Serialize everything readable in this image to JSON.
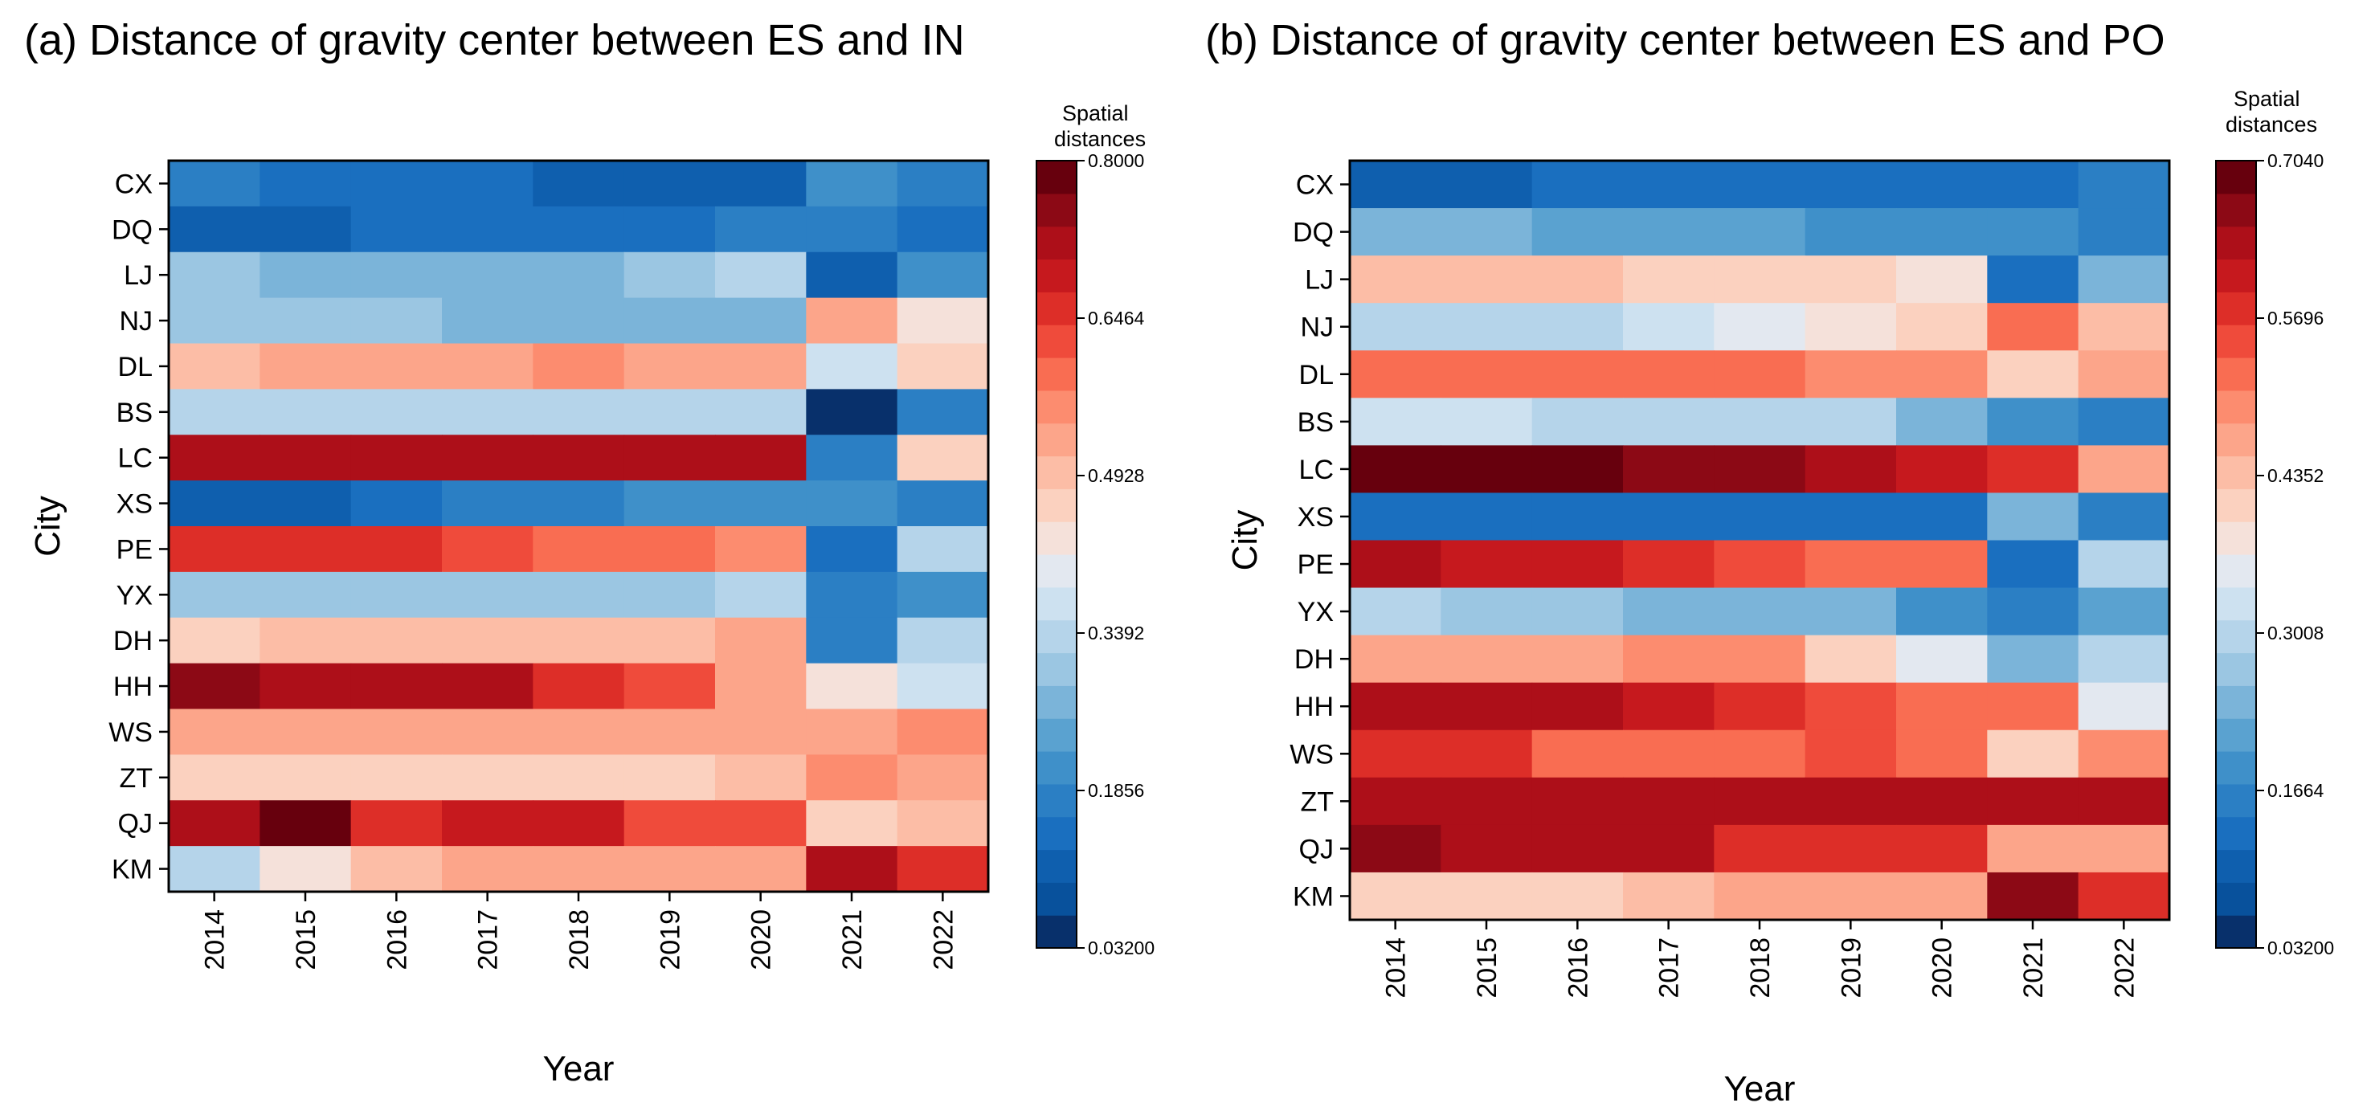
{
  "chart_data": [
    {
      "type": "heatmap",
      "title": "(a)  Distance of  gravity center between ES and IN",
      "xlabel": "Year",
      "ylabel": "City",
      "x": [
        "2014",
        "2015",
        "2016",
        "2017",
        "2018",
        "2019",
        "2020",
        "2021",
        "2022"
      ],
      "y": [
        "CX",
        "DQ",
        "LJ",
        "NJ",
        "DL",
        "BS",
        "LC",
        "XS",
        "PE",
        "YX",
        "DH",
        "HH",
        "WS",
        "ZT",
        "QJ",
        "KM"
      ],
      "values": [
        [
          0.18,
          0.15,
          0.15,
          0.15,
          0.12,
          0.12,
          0.12,
          0.2,
          0.18
        ],
        [
          0.12,
          0.12,
          0.15,
          0.15,
          0.15,
          0.15,
          0.18,
          0.18,
          0.15
        ],
        [
          0.31,
          0.27,
          0.27,
          0.27,
          0.27,
          0.29,
          0.33,
          0.12,
          0.22
        ],
        [
          0.31,
          0.31,
          0.31,
          0.27,
          0.27,
          0.27,
          0.27,
          0.52,
          0.42
        ],
        [
          0.5,
          0.52,
          0.52,
          0.52,
          0.56,
          0.52,
          0.52,
          0.38,
          0.46
        ],
        [
          0.33,
          0.33,
          0.35,
          0.35,
          0.35,
          0.35,
          0.33,
          0.04,
          0.18
        ],
        [
          0.73,
          0.73,
          0.73,
          0.73,
          0.71,
          0.71,
          0.71,
          0.18,
          0.46
        ],
        [
          0.1,
          0.1,
          0.15,
          0.18,
          0.18,
          0.2,
          0.22,
          0.22,
          0.18
        ],
        [
          0.67,
          0.64,
          0.64,
          0.62,
          0.6,
          0.6,
          0.56,
          0.15,
          0.33
        ],
        [
          0.31,
          0.31,
          0.31,
          0.31,
          0.31,
          0.31,
          0.33,
          0.18,
          0.22
        ],
        [
          0.46,
          0.5,
          0.5,
          0.5,
          0.5,
          0.5,
          0.52,
          0.18,
          0.35
        ],
        [
          0.76,
          0.73,
          0.71,
          0.71,
          0.67,
          0.62,
          0.52,
          0.44,
          0.37
        ],
        [
          0.54,
          0.54,
          0.54,
          0.54,
          0.54,
          0.54,
          0.54,
          0.52,
          0.56
        ],
        [
          0.46,
          0.46,
          0.46,
          0.48,
          0.46,
          0.48,
          0.5,
          0.56,
          0.52
        ],
        [
          0.71,
          0.78,
          0.67,
          0.69,
          0.69,
          0.62,
          0.62,
          0.46,
          0.5
        ],
        [
          0.35,
          0.42,
          0.5,
          0.52,
          0.54,
          0.54,
          0.54,
          0.71,
          0.67
        ]
      ],
      "colorbar": {
        "title": "Spatial\ndistances",
        "min": 0.032,
        "max": 0.8,
        "ticks": [
          "0.03200",
          "0.1856",
          "0.3392",
          "0.4928",
          "0.6464",
          "0.8000"
        ]
      }
    },
    {
      "type": "heatmap",
      "title": "(b)  Distance of  gravity center between ES and PO",
      "xlabel": "Year",
      "ylabel": "City",
      "x": [
        "2014",
        "2015",
        "2016",
        "2017",
        "2018",
        "2019",
        "2020",
        "2021",
        "2022"
      ],
      "y": [
        "CX",
        "DQ",
        "LJ",
        "NJ",
        "DL",
        "BS",
        "LC",
        "XS",
        "PE",
        "YX",
        "DH",
        "HH",
        "WS",
        "ZT",
        "QJ",
        "KM"
      ],
      "values": [
        [
          0.11,
          0.11,
          0.13,
          0.13,
          0.13,
          0.13,
          0.13,
          0.13,
          0.15
        ],
        [
          0.24,
          0.24,
          0.21,
          0.21,
          0.21,
          0.19,
          0.19,
          0.19,
          0.17
        ],
        [
          0.45,
          0.45,
          0.45,
          0.42,
          0.42,
          0.42,
          0.39,
          0.13,
          0.23
        ],
        [
          0.29,
          0.29,
          0.31,
          0.33,
          0.35,
          0.38,
          0.42,
          0.52,
          0.45
        ],
        [
          0.53,
          0.51,
          0.51,
          0.51,
          0.51,
          0.49,
          0.49,
          0.42,
          0.47
        ],
        [
          0.33,
          0.33,
          0.31,
          0.31,
          0.31,
          0.29,
          0.25,
          0.19,
          0.17
        ],
        [
          0.68,
          0.7,
          0.7,
          0.66,
          0.66,
          0.64,
          0.6,
          0.57,
          0.47
        ],
        [
          0.13,
          0.13,
          0.13,
          0.13,
          0.13,
          0.13,
          0.13,
          0.23,
          0.17
        ],
        [
          0.62,
          0.6,
          0.6,
          0.57,
          0.55,
          0.53,
          0.53,
          0.13,
          0.29
        ],
        [
          0.29,
          0.27,
          0.27,
          0.25,
          0.25,
          0.23,
          0.19,
          0.17,
          0.21
        ],
        [
          0.47,
          0.47,
          0.47,
          0.49,
          0.49,
          0.42,
          0.36,
          0.23,
          0.31
        ],
        [
          0.62,
          0.62,
          0.62,
          0.6,
          0.57,
          0.55,
          0.53,
          0.51,
          0.36
        ],
        [
          0.57,
          0.57,
          0.53,
          0.53,
          0.53,
          0.55,
          0.53,
          0.42,
          0.49
        ],
        [
          0.64,
          0.62,
          0.62,
          0.62,
          0.62,
          0.62,
          0.64,
          0.64,
          0.64
        ],
        [
          0.66,
          0.64,
          0.64,
          0.64,
          0.57,
          0.57,
          0.57,
          0.47,
          0.47
        ],
        [
          0.42,
          0.42,
          0.42,
          0.45,
          0.47,
          0.47,
          0.47,
          0.66,
          0.57
        ]
      ],
      "colorbar": {
        "title": "Spatial\ndistances",
        "min": 0.032,
        "max": 0.704,
        "ticks": [
          "0.03200",
          "0.1664",
          "0.3008",
          "0.4352",
          "0.5696",
          "0.7040"
        ]
      }
    }
  ],
  "palette": [
    "#08306b",
    "#08519c",
    "#0f5fae",
    "#1a6fbf",
    "#2b7fc4",
    "#3f90c9",
    "#5aa2d0",
    "#7bb4d9",
    "#9bc6e2",
    "#b5d4ea",
    "#cde1f0",
    "#e3e8f0",
    "#f5e1da",
    "#fbd1bf",
    "#fcbda6",
    "#fca58a",
    "#fc8c6f",
    "#f96d52",
    "#ef4b3b",
    "#dd2e28",
    "#c6191e",
    "#ad0f19",
    "#8c0915",
    "#67000d"
  ]
}
